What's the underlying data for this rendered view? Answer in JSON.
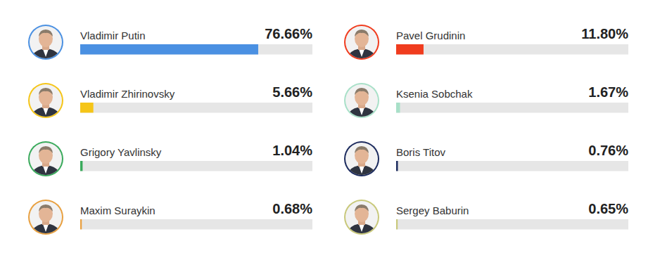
{
  "chart_data": {
    "type": "bar",
    "orientation": "horizontal",
    "categories": [
      "Vladimir Putin",
      "Pavel Grudinin",
      "Vladimir Zhirinovsky",
      "Ksenia Sobchak",
      "Grigory Yavlinsky",
      "Boris Titov",
      "Maxim Suraykin",
      "Sergey Baburin"
    ],
    "values": [
      76.66,
      11.8,
      5.66,
      1.67,
      1.04,
      0.76,
      0.68,
      0.65
    ],
    "value_labels": [
      "76.66%",
      "11.80%",
      "5.66%",
      "1.67%",
      "1.04%",
      "0.76%",
      "0.68%",
      "0.65%"
    ],
    "colors": [
      "#4a90e2",
      "#f03c1e",
      "#f5c518",
      "#a8e0c8",
      "#3aaa5c",
      "#1c2b5e",
      "#e8a040",
      "#c8c87a"
    ],
    "xlim": [
      0,
      100
    ],
    "data_labels": true,
    "tick_labels": false,
    "grid": false
  }
}
